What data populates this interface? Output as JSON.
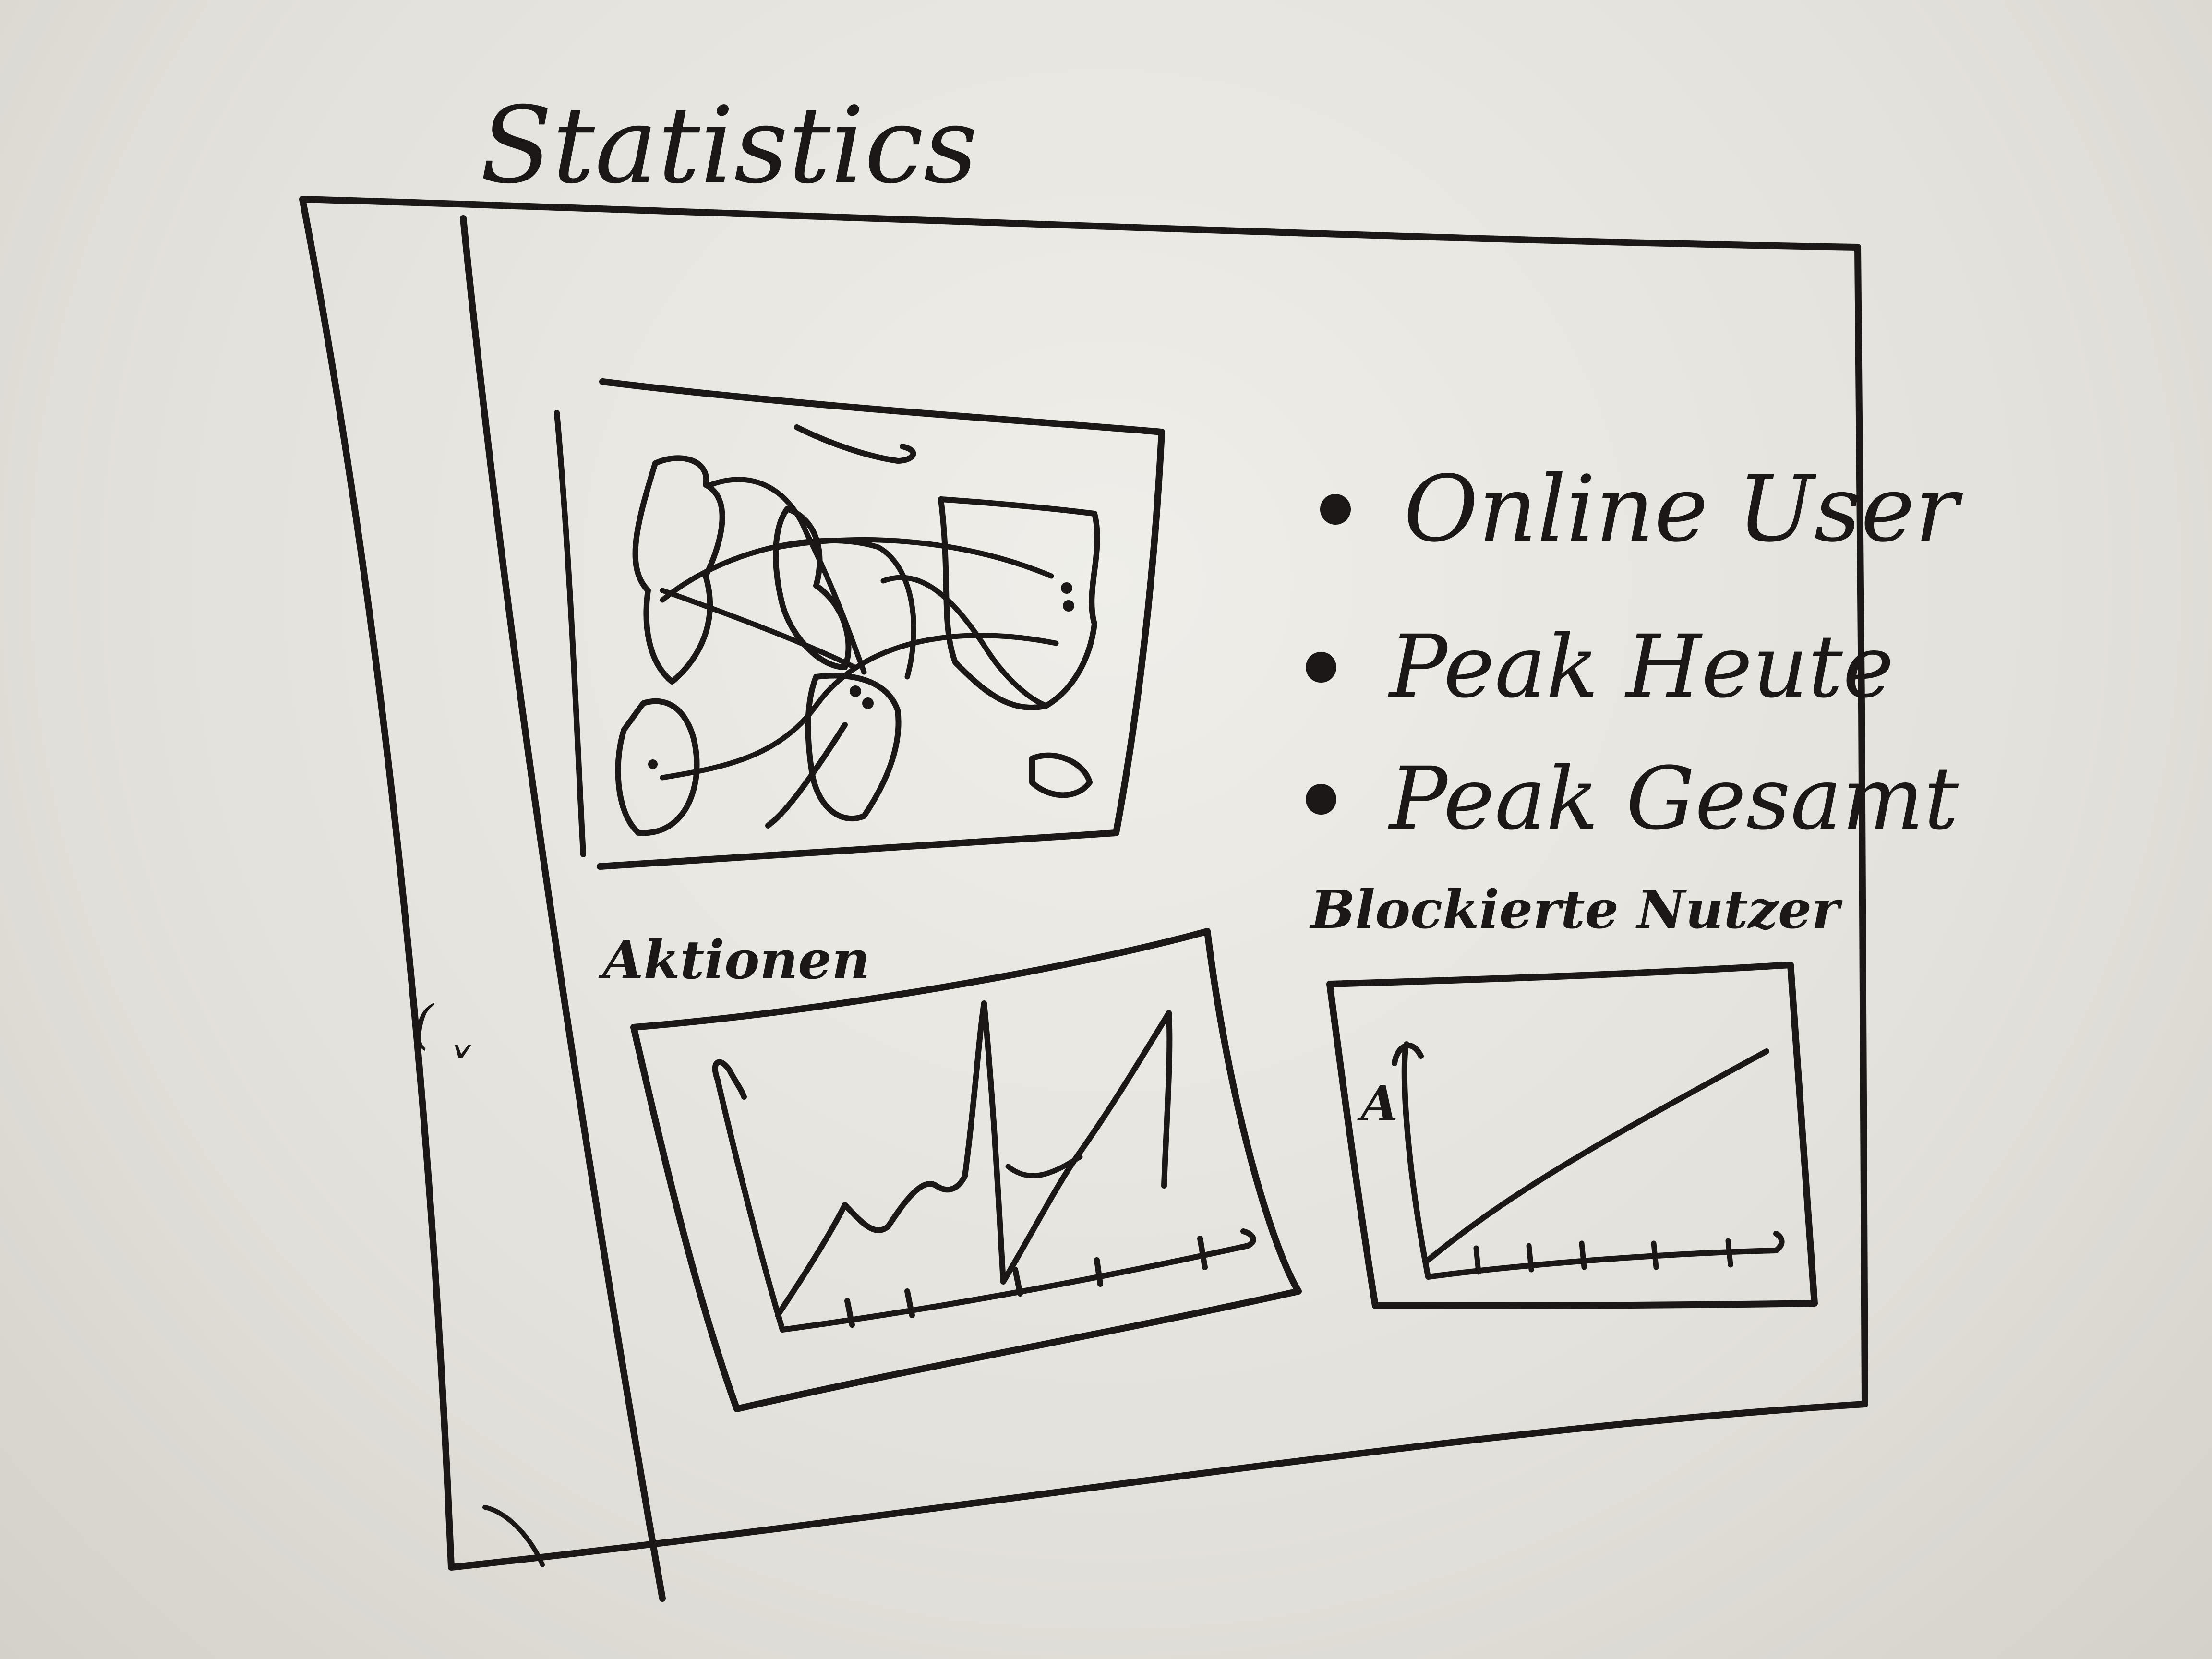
{
  "page": {
    "title": "Statistics"
  },
  "legend": {
    "items": [
      {
        "label": "Online User"
      },
      {
        "label": "Peak Heute"
      },
      {
        "label": "Peak Gesamt"
      }
    ]
  },
  "left_chart": {
    "title": "Aktionen"
  },
  "right_chart": {
    "title": "Blockierte Nutzer",
    "axis_label": "A"
  },
  "sidebar": {
    "mark": "( ˬ"
  },
  "colors": {
    "ink": "#1a1716",
    "board": "#e9e7e1"
  }
}
